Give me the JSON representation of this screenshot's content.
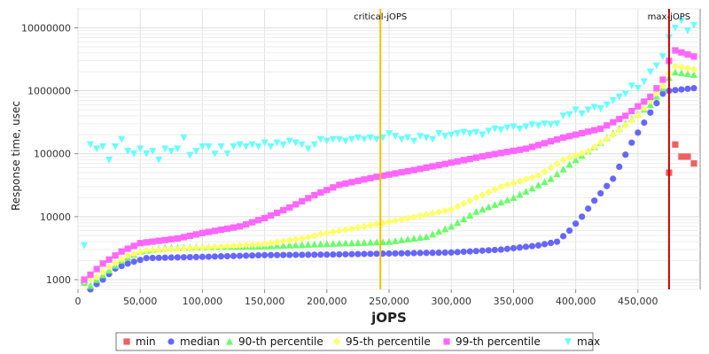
{
  "chart_data": {
    "type": "scatter",
    "title": "",
    "xlabel": "jOPS",
    "ylabel": "Response time, usec",
    "xlim": [
      0,
      500000
    ],
    "ylim": [
      700,
      20000000
    ],
    "yscale": "log",
    "grid": true,
    "legend_position": "bottom",
    "x_ticks": [
      0,
      50000,
      100000,
      150000,
      200000,
      250000,
      300000,
      350000,
      400000,
      450000
    ],
    "x_tick_labels": [
      "0",
      "50,000",
      "100,000",
      "150,000",
      "200,000",
      "250,000",
      "300,000",
      "350,000",
      "400,000",
      "450,000"
    ],
    "y_ticks": [
      1000,
      10000,
      100000,
      1000000,
      10000000
    ],
    "y_tick_labels": [
      "1000",
      "10000",
      "100000",
      "1000000",
      "10000000"
    ],
    "vertical_lines": [
      {
        "label": "critical-jOPS",
        "x": 243000,
        "color": "#ffc000"
      },
      {
        "label": "max-jOPS",
        "x": 475000,
        "color": "#cc0000"
      }
    ],
    "series": [
      {
        "name": "min",
        "color": "#f06060",
        "marker": "square",
        "points": [
          [
            475000,
            50000
          ],
          [
            480000,
            140000
          ],
          [
            485000,
            90000
          ],
          [
            490000,
            90000
          ],
          [
            495000,
            70000
          ]
        ]
      },
      {
        "name": "median",
        "color": "#6666ff",
        "marker": "circle",
        "anchors": [
          [
            5000,
            900
          ],
          [
            10000,
            700
          ],
          [
            15000,
            850
          ],
          [
            20000,
            1000
          ],
          [
            30000,
            1500
          ],
          [
            40000,
            1800
          ],
          [
            55000,
            2200
          ],
          [
            100000,
            2300
          ],
          [
            150000,
            2450
          ],
          [
            200000,
            2500
          ],
          [
            250000,
            2600
          ],
          [
            300000,
            2700
          ],
          [
            340000,
            3000
          ],
          [
            370000,
            3500
          ],
          [
            385000,
            4000
          ],
          [
            395000,
            6000
          ],
          [
            405000,
            10000
          ],
          [
            415000,
            18000
          ],
          [
            430000,
            40000
          ],
          [
            445000,
            150000
          ],
          [
            460000,
            450000
          ],
          [
            470000,
            900000
          ],
          [
            475000,
            1000000
          ],
          [
            495000,
            1100000
          ]
        ]
      },
      {
        "name": "90-th percentile",
        "color": "#66ff66",
        "marker": "triangle",
        "anchors": [
          [
            5000,
            900
          ],
          [
            10000,
            800
          ],
          [
            15000,
            1000
          ],
          [
            25000,
            1400
          ],
          [
            35000,
            2000
          ],
          [
            50000,
            2800
          ],
          [
            70000,
            3200
          ],
          [
            100000,
            3300
          ],
          [
            150000,
            3400
          ],
          [
            200000,
            3700
          ],
          [
            250000,
            4000
          ],
          [
            280000,
            4800
          ],
          [
            300000,
            7000
          ],
          [
            320000,
            12000
          ],
          [
            350000,
            20000
          ],
          [
            380000,
            40000
          ],
          [
            400000,
            80000
          ],
          [
            420000,
            150000
          ],
          [
            440000,
            300000
          ],
          [
            460000,
            600000
          ],
          [
            470000,
            1100000
          ],
          [
            478000,
            2000000
          ],
          [
            495000,
            1800000
          ]
        ]
      },
      {
        "name": "95-th percentile",
        "color": "#ffff66",
        "marker": "diamond",
        "anchors": [
          [
            5000,
            950
          ],
          [
            15000,
            1100
          ],
          [
            25000,
            1600
          ],
          [
            40000,
            2400
          ],
          [
            55000,
            2900
          ],
          [
            100000,
            3200
          ],
          [
            150000,
            3700
          ],
          [
            180000,
            4500
          ],
          [
            200000,
            5500
          ],
          [
            230000,
            7000
          ],
          [
            260000,
            9000
          ],
          [
            300000,
            13000
          ],
          [
            320000,
            20000
          ],
          [
            340000,
            30000
          ],
          [
            370000,
            45000
          ],
          [
            390000,
            80000
          ],
          [
            410000,
            110000
          ],
          [
            430000,
            200000
          ],
          [
            450000,
            400000
          ],
          [
            470000,
            1200000
          ],
          [
            478000,
            2500000
          ],
          [
            495000,
            2200000
          ]
        ]
      },
      {
        "name": "99-th percentile",
        "color": "#ff66ff",
        "marker": "square",
        "anchors": [
          [
            5000,
            1000
          ],
          [
            10000,
            1200
          ],
          [
            20000,
            1800
          ],
          [
            35000,
            2800
          ],
          [
            50000,
            3800
          ],
          [
            80000,
            4500
          ],
          [
            100000,
            5500
          ],
          [
            130000,
            7000
          ],
          [
            150000,
            9500
          ],
          [
            170000,
            14000
          ],
          [
            190000,
            22000
          ],
          [
            210000,
            32000
          ],
          [
            240000,
            43000
          ],
          [
            270000,
            55000
          ],
          [
            300000,
            72000
          ],
          [
            330000,
            95000
          ],
          [
            360000,
            120000
          ],
          [
            390000,
            180000
          ],
          [
            420000,
            250000
          ],
          [
            440000,
            400000
          ],
          [
            460000,
            800000
          ],
          [
            470000,
            1500000
          ],
          [
            478000,
            4500000
          ],
          [
            495000,
            3500000
          ]
        ]
      },
      {
        "name": "max",
        "color": "#66ffff",
        "marker": "triangle-down",
        "points": [
          [
            5000,
            3500
          ],
          [
            10000,
            140000
          ],
          [
            15000,
            120000
          ],
          [
            20000,
            130000
          ],
          [
            25000,
            80000
          ],
          [
            30000,
            130000
          ],
          [
            35000,
            170000
          ],
          [
            40000,
            110000
          ],
          [
            45000,
            100000
          ],
          [
            50000,
            120000
          ],
          [
            55000,
            100000
          ],
          [
            60000,
            110000
          ],
          [
            65000,
            80000
          ],
          [
            70000,
            120000
          ],
          [
            75000,
            110000
          ],
          [
            80000,
            120000
          ],
          [
            85000,
            180000
          ],
          [
            90000,
            95000
          ],
          [
            95000,
            110000
          ],
          [
            100000,
            130000
          ],
          [
            105000,
            130000
          ],
          [
            110000,
            100000
          ],
          [
            115000,
            130000
          ],
          [
            120000,
            100000
          ],
          [
            125000,
            130000
          ],
          [
            130000,
            140000
          ],
          [
            135000,
            130000
          ],
          [
            140000,
            140000
          ],
          [
            145000,
            130000
          ],
          [
            150000,
            150000
          ],
          [
            155000,
            130000
          ],
          [
            160000,
            150000
          ],
          [
            165000,
            140000
          ],
          [
            170000,
            160000
          ],
          [
            175000,
            150000
          ],
          [
            180000,
            140000
          ],
          [
            185000,
            120000
          ],
          [
            190000,
            140000
          ],
          [
            195000,
            170000
          ],
          [
            200000,
            160000
          ],
          [
            205000,
            170000
          ],
          [
            210000,
            170000
          ],
          [
            215000,
            160000
          ],
          [
            220000,
            170000
          ],
          [
            225000,
            180000
          ],
          [
            230000,
            170000
          ],
          [
            235000,
            180000
          ],
          [
            240000,
            170000
          ],
          [
            245000,
            180000
          ],
          [
            250000,
            210000
          ],
          [
            255000,
            190000
          ],
          [
            260000,
            170000
          ],
          [
            265000,
            180000
          ],
          [
            270000,
            160000
          ],
          [
            275000,
            190000
          ],
          [
            280000,
            180000
          ],
          [
            285000,
            170000
          ],
          [
            290000,
            210000
          ],
          [
            295000,
            190000
          ],
          [
            300000,
            200000
          ],
          [
            305000,
            210000
          ],
          [
            310000,
            220000
          ],
          [
            315000,
            210000
          ],
          [
            320000,
            220000
          ],
          [
            325000,
            200000
          ],
          [
            330000,
            230000
          ],
          [
            335000,
            250000
          ],
          [
            340000,
            240000
          ],
          [
            345000,
            260000
          ],
          [
            350000,
            270000
          ],
          [
            355000,
            250000
          ],
          [
            360000,
            270000
          ],
          [
            365000,
            290000
          ],
          [
            370000,
            280000
          ],
          [
            375000,
            300000
          ],
          [
            380000,
            290000
          ],
          [
            385000,
            300000
          ],
          [
            390000,
            400000
          ],
          [
            395000,
            420000
          ],
          [
            400000,
            500000
          ],
          [
            405000,
            430000
          ],
          [
            410000,
            500000
          ],
          [
            415000,
            550000
          ],
          [
            420000,
            520000
          ],
          [
            425000,
            600000
          ],
          [
            430000,
            700000
          ],
          [
            435000,
            800000
          ],
          [
            440000,
            900000
          ],
          [
            445000,
            1200000
          ],
          [
            450000,
            1100000
          ],
          [
            455000,
            1400000
          ],
          [
            460000,
            2000000
          ],
          [
            465000,
            2500000
          ],
          [
            470000,
            3500000
          ],
          [
            475000,
            7000000
          ],
          [
            480000,
            10000000
          ],
          [
            485000,
            13000000
          ],
          [
            490000,
            9000000
          ],
          [
            495000,
            11000000
          ]
        ]
      }
    ]
  }
}
